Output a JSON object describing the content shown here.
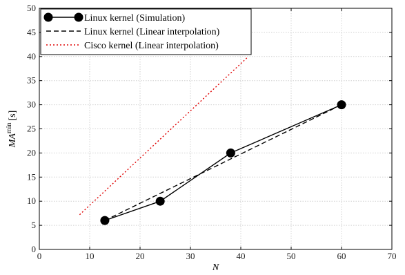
{
  "chart_data": {
    "type": "line",
    "xlabel": "N",
    "ylabel": "MA",
    "ylabel_superscript": "min",
    "ylabel_unit": "[s]",
    "xlim": [
      0,
      70
    ],
    "ylim": [
      0,
      50
    ],
    "xticks": [
      0,
      10,
      20,
      30,
      40,
      50,
      60,
      70
    ],
    "yticks": [
      0,
      5,
      10,
      15,
      20,
      25,
      30,
      35,
      40,
      45,
      50
    ],
    "grid": true,
    "legend_position": "top-left",
    "series": [
      {
        "name": "Linux kernel (Simulation)",
        "style": "solid-markers",
        "color": "#000000",
        "points": [
          [
            13,
            6
          ],
          [
            24,
            10
          ],
          [
            38,
            20
          ],
          [
            60,
            30
          ]
        ]
      },
      {
        "name": "Linux kernel (Linear interpolation)",
        "style": "dashed",
        "color": "#000000",
        "points": [
          [
            13,
            6
          ],
          [
            60,
            30
          ]
        ]
      },
      {
        "name": "Cisco kernel (Linear interpolation)",
        "style": "dotted",
        "color": "#e00000",
        "points": [
          [
            8,
            7.2
          ],
          [
            41.5,
            40
          ]
        ]
      }
    ]
  }
}
